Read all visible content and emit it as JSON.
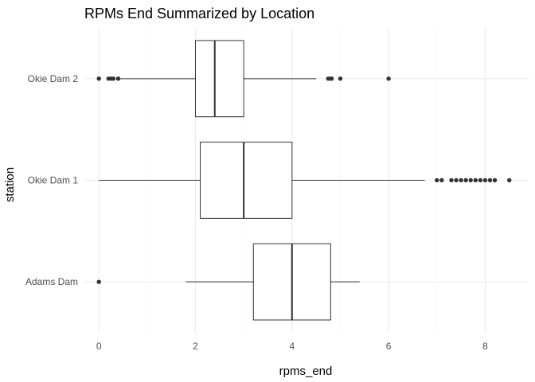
{
  "chart_data": {
    "type": "boxplot",
    "orientation": "horizontal",
    "title": "RPMs End Summarized by Location",
    "xlabel": "rpms_end",
    "ylabel": "station",
    "xlim": [
      -0.3,
      8.9
    ],
    "x_ticks": [
      0,
      2,
      4,
      6,
      8
    ],
    "x_tick_labels": [
      "0",
      "2",
      "4",
      "6",
      "8"
    ],
    "grid": true,
    "legend": "none",
    "colors": {
      "box_stroke": "#333333",
      "grid": "#ebebeb",
      "outlier": "#333333"
    },
    "categories": [
      "Adams Dam",
      "Okie Dam 1",
      "Okie Dam 2"
    ],
    "boxes": [
      {
        "category": "Adams Dam",
        "whisker_low": 1.8,
        "q1": 3.2,
        "median": 4.0,
        "q3": 4.8,
        "whisker_high": 5.4,
        "outliers": [
          0.0
        ]
      },
      {
        "category": "Okie Dam 1",
        "whisker_low": 0.0,
        "q1": 2.1,
        "median": 3.0,
        "q3": 4.0,
        "whisker_high": 6.75,
        "outliers": [
          7.0,
          7.1,
          7.3,
          7.4,
          7.5,
          7.6,
          7.7,
          7.8,
          7.9,
          8.0,
          8.1,
          8.2,
          8.5
        ]
      },
      {
        "category": "Okie Dam 2",
        "whisker_low": 0.4,
        "q1": 2.0,
        "median": 2.4,
        "q3": 3.0,
        "whisker_high": 4.5,
        "outliers": [
          0.0,
          0.2,
          0.25,
          0.3,
          0.4,
          4.75,
          4.8,
          4.82,
          5.0,
          6.0
        ]
      }
    ]
  }
}
